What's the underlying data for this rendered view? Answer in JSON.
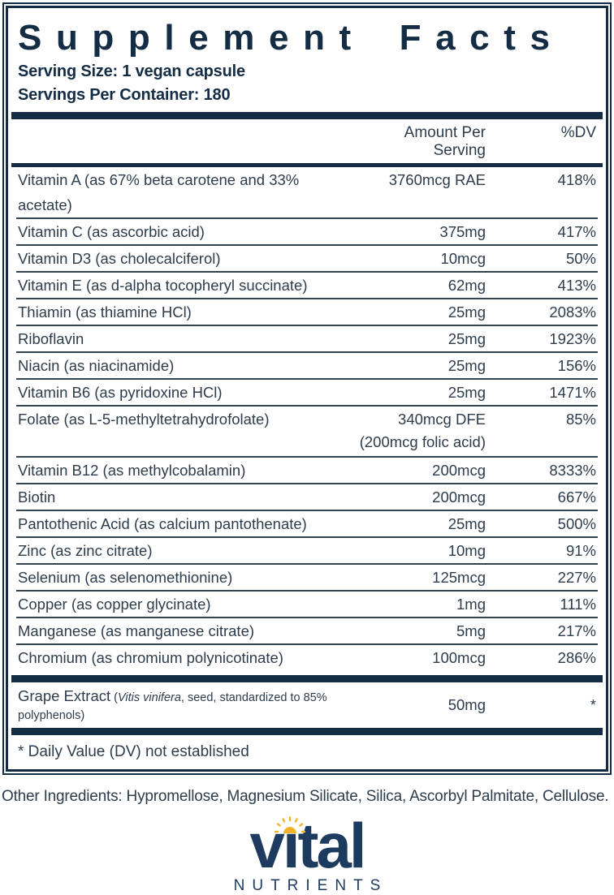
{
  "label": {
    "title": "Supplement Facts",
    "serving_size": "Serving Size: 1 vegan capsule",
    "servings_per_container": "Servings Per Container: 180",
    "columns": {
      "amount": "Amount Per Serving",
      "dv": "%DV"
    },
    "rows": [
      {
        "name": "Vitamin A (as 67% beta carotene and 33% acetate)",
        "amount": "3760mcg RAE",
        "dv": "418%"
      },
      {
        "name": "Vitamin C (as ascorbic acid)",
        "amount": "375mg",
        "dv": "417%"
      },
      {
        "name": "Vitamin D3 (as cholecalciferol)",
        "amount": "10mcg",
        "dv": "50%"
      },
      {
        "name": "Vitamin E (as d-alpha tocopheryl succinate)",
        "amount": "62mg",
        "dv": "413%"
      },
      {
        "name": "Thiamin (as thiamine HCl)",
        "amount": "25mg",
        "dv": "2083%"
      },
      {
        "name": "Riboflavin",
        "amount": "25mg",
        "dv": "1923%"
      },
      {
        "name": "Niacin (as niacinamide)",
        "amount": "25mg",
        "dv": "156%"
      },
      {
        "name": "Vitamin B6 (as pyridoxine HCl)",
        "amount": "25mg",
        "dv": "1471%"
      },
      {
        "name": "Folate (as L-5-methyltetrahydrofolate)",
        "amount": "340mcg DFE",
        "amount2": "(200mcg folic acid)",
        "dv": "85%"
      },
      {
        "name": "Vitamin B12 (as methylcobalamin)",
        "amount": "200mcg",
        "dv": "8333%"
      },
      {
        "name": "Biotin",
        "amount": "200mcg",
        "dv": "667%"
      },
      {
        "name": "Pantothenic Acid (as calcium pantothenate)",
        "amount": "25mg",
        "dv": "500%"
      },
      {
        "name": "Zinc (as zinc citrate)",
        "amount": "10mg",
        "dv": "91%"
      },
      {
        "name": "Selenium (as selenomethionine)",
        "amount": "125mcg",
        "dv": "227%"
      },
      {
        "name": "Copper (as copper glycinate)",
        "amount": "1mg",
        "dv": "111%"
      },
      {
        "name": "Manganese (as manganese citrate)",
        "amount": "5mg",
        "dv": "217%"
      },
      {
        "name": "Chromium (as chromium polynicotinate)",
        "amount": "100mcg",
        "dv": "286%"
      }
    ],
    "extract": {
      "name": "Grape Extract",
      "detail_pre": " (",
      "detail_italic": "Vitis vinifera",
      "detail_rest": ", seed, standardized to 85% polyphenols)",
      "amount": "50mg",
      "dv": "*"
    },
    "footnote": "* Daily Value (DV) not established",
    "other_ingredients": "Other Ingredients: Hypromellose, Magnesium Silicate, Silica, Ascorbyl Palmitate, Cellulose.",
    "logo": {
      "word": "vital",
      "subtext": "NUTRIENTS",
      "icon": "sun-icon"
    },
    "colors": {
      "navy": "#142c44",
      "text": "#2e3c4b",
      "gold": "#f2b32a",
      "logo_navy": "#1d3a5f"
    }
  }
}
